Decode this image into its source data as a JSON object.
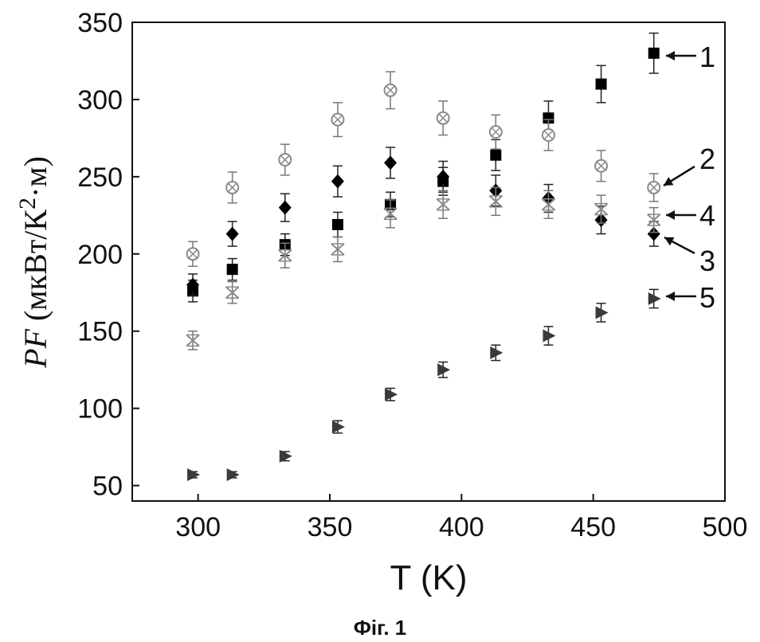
{
  "figure_caption": "Фіг. 1",
  "chart_data": {
    "type": "scatter",
    "xlabel": "T (K)",
    "ylabel": {
      "symbol": "PF",
      "unit_open": " (мкВт/К",
      "unit_power": "2",
      "unit_close": "·м)"
    },
    "xlim": [
      275,
      500
    ],
    "ylim": [
      40,
      350
    ],
    "x_ticks": [
      300,
      350,
      400,
      450,
      500
    ],
    "y_ticks": [
      50,
      100,
      150,
      200,
      250,
      300,
      350
    ],
    "grid": false,
    "series": [
      {
        "name": "1",
        "marker": "square",
        "color": "#000000",
        "x": [
          298,
          313,
          333,
          353,
          373,
          393,
          413,
          433,
          453,
          473
        ],
        "y": [
          176,
          190,
          206,
          219,
          232,
          247,
          264,
          288,
          310,
          330
        ],
        "err": [
          7,
          7,
          7,
          8,
          8,
          9,
          10,
          11,
          12,
          13
        ]
      },
      {
        "name": "2",
        "marker": "circle-cross",
        "color": "#8a8a8a",
        "x": [
          298,
          313,
          333,
          353,
          373,
          393,
          413,
          433,
          453,
          473
        ],
        "y": [
          200,
          243,
          261,
          287,
          306,
          288,
          279,
          277,
          257,
          243
        ],
        "err": [
          8,
          10,
          10,
          11,
          12,
          11,
          11,
          10,
          10,
          9
        ]
      },
      {
        "name": "3",
        "marker": "diamond",
        "color": "#000000",
        "x": [
          298,
          313,
          333,
          353,
          373,
          393,
          413,
          433,
          453,
          473
        ],
        "y": [
          180,
          213,
          230,
          247,
          259,
          250,
          241,
          236,
          222,
          213
        ],
        "err": [
          7,
          8,
          9,
          10,
          10,
          10,
          10,
          9,
          9,
          8
        ]
      },
      {
        "name": "4",
        "marker": "hourglass",
        "color": "#8a8a8a",
        "x": [
          298,
          313,
          333,
          353,
          373,
          393,
          413,
          433,
          453,
          473
        ],
        "y": [
          144,
          175,
          199,
          203,
          226,
          232,
          234,
          232,
          229,
          222
        ],
        "err": [
          6,
          7,
          8,
          8,
          9,
          9,
          9,
          9,
          9,
          8
        ]
      },
      {
        "name": "5",
        "marker": "triangle-right",
        "color": "#3a3a3a",
        "x": [
          298,
          313,
          333,
          353,
          373,
          393,
          413,
          433,
          453,
          473
        ],
        "y": [
          57,
          57,
          69,
          88,
          109,
          125,
          136,
          147,
          162,
          171
        ],
        "err": [
          2,
          2,
          3,
          4,
          4,
          5,
          5,
          6,
          6,
          6
        ]
      }
    ],
    "series_labels": [
      {
        "series": "1",
        "text": "1",
        "from_y": 330
      },
      {
        "series": "2",
        "text": "2",
        "from_y": 243
      },
      {
        "series": "4",
        "text": "4",
        "from_y": 225
      },
      {
        "series": "3",
        "text": "3",
        "from_y": 213
      },
      {
        "series": "5",
        "text": "5",
        "from_y": 171
      }
    ]
  }
}
